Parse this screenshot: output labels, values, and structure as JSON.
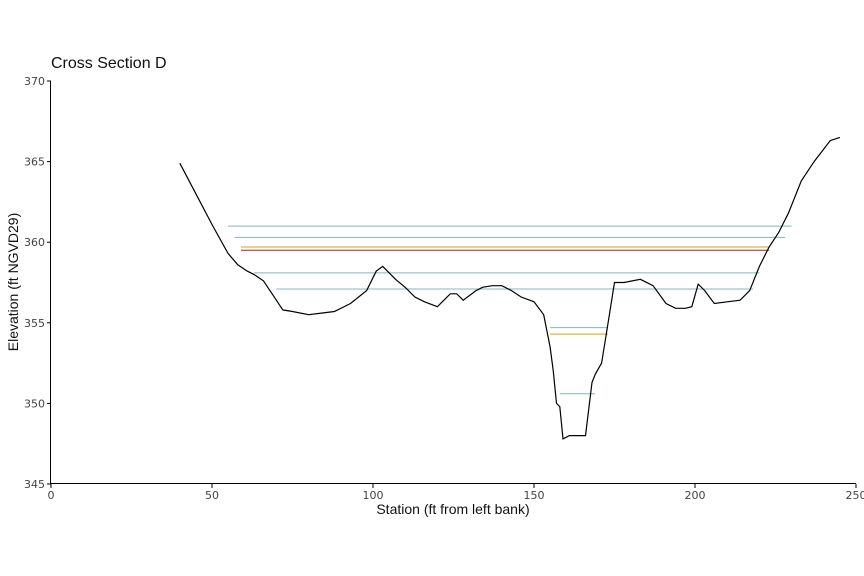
{
  "chart_data": {
    "type": "line",
    "title": "Cross Section D",
    "xlabel": "Station (ft from left bank)",
    "ylabel": "Elevation (ft NGVD29)",
    "xlim": [
      0,
      250
    ],
    "ylim": [
      345,
      370
    ],
    "xticks": [
      "0",
      "50",
      "100",
      "150",
      "200",
      "250"
    ],
    "yticks": [
      "345",
      "350",
      "355",
      "360",
      "365",
      "370"
    ],
    "grid": false,
    "legend": "none",
    "colors": {
      "profile": "#000000",
      "teal": "#7fb8bc",
      "orange": "#e69f00",
      "red": "#b2182b"
    },
    "profile": {
      "x": [
        40,
        45,
        50,
        55,
        58,
        61,
        63,
        66,
        69,
        72,
        75,
        80,
        84,
        88,
        93,
        98,
        101,
        103,
        104,
        107,
        110,
        113,
        116,
        120,
        124,
        126,
        128,
        132,
        134,
        137,
        140,
        143,
        146,
        150,
        153,
        155,
        156,
        157,
        158,
        159,
        161,
        163,
        166,
        168,
        169,
        171,
        173,
        175,
        178,
        183,
        187,
        191,
        194,
        197,
        199,
        201,
        203,
        206,
        210,
        214,
        217,
        220,
        223,
        226,
        229,
        233,
        237,
        242,
        245
      ],
      "y": [
        364.9,
        363.0,
        361.1,
        359.3,
        358.6,
        358.2,
        358.0,
        357.6,
        356.7,
        355.8,
        355.7,
        355.5,
        355.6,
        355.7,
        356.2,
        357.0,
        358.2,
        358.5,
        358.3,
        357.7,
        357.2,
        356.6,
        356.3,
        356.0,
        356.8,
        356.8,
        356.4,
        357.0,
        357.2,
        357.3,
        357.3,
        357.0,
        356.6,
        356.3,
        355.5,
        353.5,
        352.0,
        350.0,
        349.8,
        347.8,
        348.0,
        348.0,
        348.0,
        351.3,
        351.8,
        352.5,
        355.0,
        357.5,
        357.5,
        357.7,
        357.3,
        356.2,
        355.9,
        355.9,
        356.0,
        357.4,
        357.0,
        356.2,
        356.3,
        356.4,
        357.0,
        358.5,
        359.7,
        360.6,
        361.8,
        363.8,
        365.0,
        366.3,
        366.5
      ]
    },
    "water_levels": [
      {
        "y": 361.0,
        "x_start": 55,
        "x_end": 230,
        "color": "teal"
      },
      {
        "y": 360.3,
        "x_start": 57,
        "x_end": 228,
        "color": "teal"
      },
      {
        "y": 359.7,
        "x_start": 59,
        "x_end": 223,
        "color": "orange"
      },
      {
        "y": 359.5,
        "x_start": 59,
        "x_end": 223,
        "color": "red"
      },
      {
        "y": 358.1,
        "x_start": 63,
        "x_end": 220,
        "color": "teal"
      },
      {
        "y": 357.1,
        "x_start": 70,
        "x_end": 218,
        "color": "teal"
      },
      {
        "y": 354.7,
        "x_start": 155,
        "x_end": 173,
        "color": "teal"
      },
      {
        "y": 354.3,
        "x_start": 155,
        "x_end": 173,
        "color": "orange"
      },
      {
        "y": 350.6,
        "x_start": 158,
        "x_end": 169,
        "color": "teal"
      }
    ]
  }
}
